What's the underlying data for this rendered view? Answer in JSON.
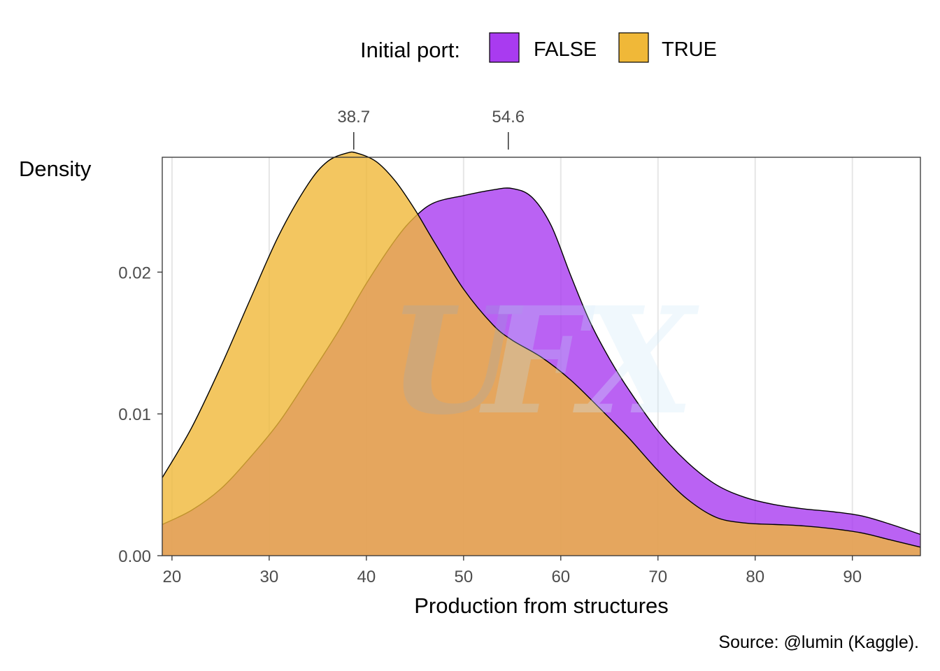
{
  "chart_data": {
    "type": "area",
    "xlabel": "Production from structures",
    "ylabel": "Density",
    "xlim": [
      19,
      97
    ],
    "ylim": [
      0,
      0.0281
    ],
    "x_ticks": [
      20,
      30,
      40,
      50,
      60,
      70,
      80,
      90
    ],
    "y_ticks": [
      0.0,
      0.01,
      0.02
    ],
    "y_tick_labels": [
      "0.00",
      "0.01",
      "0.02"
    ],
    "grid": "vertical-major",
    "legend": {
      "title": "Initial port:",
      "position": "top",
      "entries": [
        {
          "label": "FALSE",
          "color": "#A93BF0"
        },
        {
          "label": "TRUE",
          "color": "#F0B838"
        }
      ]
    },
    "median_markers": [
      {
        "value": 38.7,
        "label": "38.7"
      },
      {
        "value": 54.6,
        "label": "54.6"
      }
    ],
    "series": [
      {
        "name": "FALSE",
        "color": "#A93BF0",
        "x": [
          19,
          22,
          25,
          28,
          31,
          34,
          37,
          40,
          43,
          45,
          47,
          50,
          53,
          55,
          57,
          59,
          61,
          63,
          65,
          67,
          70,
          73,
          76,
          79,
          82,
          85,
          88,
          91,
          94,
          97
        ],
        "y": [
          0.0022,
          0.0032,
          0.0047,
          0.0069,
          0.0094,
          0.0125,
          0.0157,
          0.0192,
          0.0223,
          0.0239,
          0.0249,
          0.0254,
          0.0258,
          0.0259,
          0.0253,
          0.0233,
          0.0198,
          0.0165,
          0.0139,
          0.0117,
          0.0088,
          0.0066,
          0.005,
          0.0041,
          0.0036,
          0.0033,
          0.0031,
          0.0028,
          0.0022,
          0.0015
        ]
      },
      {
        "name": "TRUE",
        "color": "#F0B838",
        "x": [
          19,
          22,
          25,
          28,
          31,
          34,
          36,
          38,
          39,
          41,
          43,
          45,
          47,
          50,
          53,
          55,
          58,
          61,
          64,
          67,
          70,
          73,
          76,
          79,
          82,
          85,
          88,
          91,
          94,
          97
        ],
        "y": [
          0.0055,
          0.009,
          0.0133,
          0.018,
          0.0226,
          0.0262,
          0.0278,
          0.0284,
          0.0284,
          0.0278,
          0.0264,
          0.0244,
          0.0221,
          0.0188,
          0.0163,
          0.0152,
          0.014,
          0.0124,
          0.0104,
          0.0083,
          0.006,
          0.004,
          0.0027,
          0.0023,
          0.0022,
          0.0021,
          0.0019,
          0.0016,
          0.0011,
          0.0006
        ]
      }
    ]
  },
  "caption": "Source: @lumin (Kaggle).",
  "watermark": "UFX"
}
